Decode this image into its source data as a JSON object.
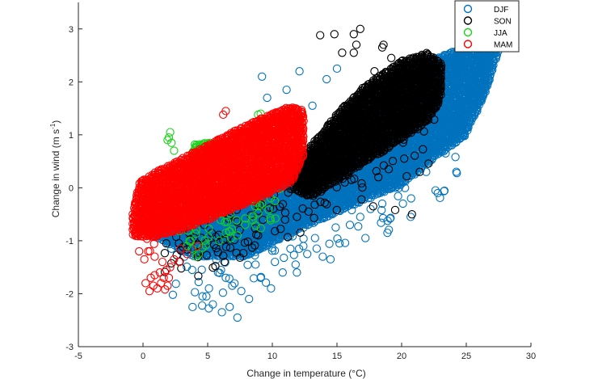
{
  "chart_data": {
    "type": "scatter",
    "title": "",
    "xlabel": "Change in temperature (°C)",
    "ylabel_main": "Change in wind (m s",
    "ylabel_sup": "-1",
    "ylabel_close": ")",
    "xlim": [
      -5,
      30
    ],
    "ylim": [
      -3,
      3.5
    ],
    "x_ticks": [
      -5,
      0,
      5,
      10,
      15,
      20,
      25,
      30
    ],
    "y_ticks": [
      -3,
      -2,
      -1,
      0,
      1,
      2,
      3
    ],
    "grid": false,
    "legend_position": "top-right",
    "marker": "open-circle",
    "series": [
      {
        "name": "DJF",
        "color": "#0072BD",
        "cloud_polygon": [
          [
            1,
            -0.95
          ],
          [
            4,
            -1.3
          ],
          [
            8,
            -1.3
          ],
          [
            12,
            -0.8
          ],
          [
            16,
            -0.35
          ],
          [
            20,
            0.05
          ],
          [
            22.5,
            0.55
          ],
          [
            25,
            1.0
          ],
          [
            26.5,
            1.8
          ],
          [
            27.5,
            2.6
          ],
          [
            26,
            2.75
          ],
          [
            22,
            2.4
          ],
          [
            18,
            1.6
          ],
          [
            14,
            0.7
          ],
          [
            10,
            0.1
          ],
          [
            6,
            -0.3
          ],
          [
            3,
            -0.6
          ],
          [
            0.5,
            -0.55
          ]
        ],
        "band": [
          [
            3,
            -1.7
          ],
          [
            6,
            -1.35
          ],
          [
            9,
            -1.0
          ],
          [
            12,
            -0.65
          ],
          [
            15,
            -0.3
          ],
          [
            18,
            0.0
          ],
          [
            21,
            0.3
          ],
          [
            24,
            0.8
          ],
          [
            26.5,
            2.0
          ]
        ],
        "band_spread": 0.85,
        "band_count": 110,
        "points": [
          [
            7.3,
            -2.45
          ],
          [
            6.1,
            -2.35
          ],
          [
            5.4,
            -2.2
          ],
          [
            4.6,
            -2.05
          ],
          [
            8.2,
            -2.1
          ],
          [
            9.9,
            -1.9
          ],
          [
            11.8,
            -1.45
          ],
          [
            13.9,
            -1.3
          ],
          [
            14.5,
            -1.35
          ],
          [
            15.2,
            -1.05
          ],
          [
            12.7,
            -1.25
          ],
          [
            10.8,
            -1.6
          ],
          [
            6.9,
            -1.85
          ],
          [
            3.8,
            -1.55
          ],
          [
            4.3,
            -1.78
          ],
          [
            9.1,
            -1.7
          ],
          [
            13.3,
            -0.95
          ],
          [
            16.8,
            -0.55
          ],
          [
            18.5,
            -0.3
          ],
          [
            20.7,
            -0.55
          ],
          [
            12.4,
            -1.1
          ],
          [
            8.7,
            -1.45
          ],
          [
            5.8,
            -1.6
          ],
          [
            7.6,
            -1.95
          ],
          [
            6.4,
            -1.7
          ],
          [
            10.2,
            -1.4
          ],
          [
            11.4,
            -1.15
          ],
          [
            14.9,
            -0.75
          ],
          [
            17.6,
            -0.4
          ],
          [
            19.8,
            0.0
          ],
          [
            21.9,
            0.3
          ],
          [
            23.4,
            0.65
          ],
          [
            24.6,
            0.95
          ],
          [
            22.8,
            -0.1
          ],
          [
            20.1,
            -0.3
          ],
          [
            9.6,
            1.7
          ],
          [
            9.2,
            2.1
          ],
          [
            11.1,
            1.85
          ],
          [
            12.1,
            2.2
          ],
          [
            9.9,
            1.25
          ],
          [
            13.1,
            1.55
          ],
          [
            14.2,
            2.05
          ],
          [
            15.0,
            2.25
          ],
          [
            3.2,
            -1.3
          ],
          [
            2.2,
            -1.15
          ],
          [
            5.1,
            -1.9
          ],
          [
            16.0,
            -0.7
          ],
          [
            18.9,
            -0.85
          ],
          [
            17.2,
            -0.95
          ],
          [
            11.9,
            -1.6
          ],
          [
            8.0,
            -1.25
          ],
          [
            6.7,
            -2.25
          ],
          [
            4.9,
            -2.05
          ],
          [
            13.6,
            -0.55
          ]
        ]
      },
      {
        "name": "SON",
        "color": "#000000",
        "cloud_polygon": [
          [
            11.5,
            0.0
          ],
          [
            13,
            -0.2
          ],
          [
            16,
            0.3
          ],
          [
            19,
            0.75
          ],
          [
            22,
            1.25
          ],
          [
            23,
            1.65
          ],
          [
            23.2,
            2.35
          ],
          [
            22,
            2.55
          ],
          [
            20,
            2.4
          ],
          [
            17,
            1.9
          ],
          [
            15,
            1.4
          ],
          [
            13.5,
            0.95
          ],
          [
            12,
            0.5
          ]
        ],
        "band": [
          [
            2,
            -1.25
          ],
          [
            5,
            -1.0
          ],
          [
            8,
            -0.7
          ],
          [
            11,
            -0.35
          ],
          [
            14,
            0.1
          ],
          [
            17,
            0.45
          ],
          [
            20,
            0.7
          ],
          [
            22,
            1.0
          ]
        ],
        "band_spread": 0.55,
        "band_count": 120,
        "points": [
          [
            13.7,
            2.88
          ],
          [
            14.8,
            2.9
          ],
          [
            16.5,
            2.7
          ],
          [
            16.3,
            2.55
          ],
          [
            18.5,
            2.65
          ],
          [
            18.6,
            2.7
          ],
          [
            16.3,
            2.9
          ],
          [
            16.8,
            3.0
          ],
          [
            15.4,
            2.55
          ],
          [
            19.2,
            2.45
          ],
          [
            17.9,
            2.2
          ],
          [
            20.8,
            -0.5
          ],
          [
            19.5,
            -0.42
          ],
          [
            16.9,
            -0.22
          ],
          [
            17.8,
            -0.35
          ],
          [
            8.9,
            -0.9
          ],
          [
            10.2,
            -0.82
          ],
          [
            5.8,
            -1.22
          ],
          [
            6.3,
            -1.4
          ],
          [
            7.5,
            -1.32
          ],
          [
            3.1,
            -1.12
          ],
          [
            2.6,
            -1.27
          ],
          [
            1.8,
            -1.05
          ],
          [
            14.2,
            -0.31
          ],
          [
            11.9,
            -0.55
          ],
          [
            12.8,
            -0.45
          ],
          [
            16.2,
            0.95
          ],
          [
            14.0,
            0.4
          ],
          [
            15.6,
            0.1
          ],
          [
            18.2,
            0.2
          ],
          [
            20.2,
            0.55
          ],
          [
            21.4,
            0.3
          ],
          [
            19.0,
            0.35
          ],
          [
            17.4,
            1.25
          ]
        ]
      },
      {
        "name": "JJA",
        "color": "#19D119",
        "cloud_polygon": [
          [
            3.5,
            0.4
          ],
          [
            4,
            0.85
          ],
          [
            5.5,
            0.85
          ],
          [
            6.5,
            0.8
          ],
          [
            7.3,
            0.7
          ],
          [
            7.2,
            0.4
          ],
          [
            5.5,
            0.35
          ],
          [
            4,
            0.3
          ]
        ],
        "band": [
          [
            2,
            -0.8
          ],
          [
            4,
            -0.75
          ],
          [
            6,
            -0.7
          ],
          [
            8,
            -0.55
          ],
          [
            10,
            -0.35
          ]
        ],
        "band_spread": 0.4,
        "band_count": 60,
        "points": [
          [
            2.1,
            1.05
          ],
          [
            2.0,
            0.95
          ],
          [
            2.2,
            0.85
          ],
          [
            1.9,
            0.9
          ],
          [
            2.4,
            0.7
          ],
          [
            8.9,
            1.38
          ],
          [
            9.1,
            1.4
          ],
          [
            4.1,
            -1.3
          ],
          [
            4.3,
            -1.25
          ],
          [
            3.8,
            -1.15
          ],
          [
            7.3,
            -0.9
          ],
          [
            6.8,
            -0.95
          ],
          [
            9.2,
            -0.3
          ],
          [
            10.2,
            -0.25
          ],
          [
            7.9,
            -0.7
          ],
          [
            5.9,
            -1.0
          ],
          [
            6.4,
            -0.85
          ]
        ]
      },
      {
        "name": "MAM",
        "color": "#FF0000",
        "cloud_polygon": [
          [
            -0.8,
            -0.5
          ],
          [
            -0.8,
            -0.9
          ],
          [
            0.5,
            -0.95
          ],
          [
            3,
            -0.8
          ],
          [
            6,
            -0.5
          ],
          [
            9,
            -0.2
          ],
          [
            11.5,
            0.1
          ],
          [
            12.5,
            0.65
          ],
          [
            12.5,
            1.45
          ],
          [
            11.5,
            1.55
          ],
          [
            9,
            1.3
          ],
          [
            6,
            0.95
          ],
          [
            3,
            0.55
          ],
          [
            1,
            0.3
          ],
          [
            -0.3,
            0.1
          ]
        ],
        "band": [
          [
            -0.5,
            -0.8
          ],
          [
            2,
            -0.5
          ],
          [
            5,
            -0.1
          ],
          [
            8,
            0.3
          ],
          [
            11,
            0.7
          ]
        ],
        "band_spread": 0.45,
        "band_count": 70,
        "points": [
          [
            0.2,
            -1.8
          ],
          [
            0.5,
            -1.95
          ],
          [
            0.8,
            -1.85
          ],
          [
            1.1,
            -1.9
          ],
          [
            1.4,
            -1.8
          ],
          [
            1.6,
            -1.7
          ],
          [
            1.7,
            -1.92
          ],
          [
            1.9,
            -1.85
          ],
          [
            2.0,
            -1.7
          ],
          [
            1.3,
            -1.6
          ],
          [
            0.9,
            -1.65
          ],
          [
            0.6,
            -1.7
          ],
          [
            2.1,
            -1.5
          ],
          [
            1.8,
            -1.55
          ],
          [
            2.4,
            -1.35
          ],
          [
            2.8,
            -1.4
          ],
          [
            0.1,
            -1.35
          ],
          [
            0.4,
            -1.2
          ],
          [
            6.2,
            1.38
          ],
          [
            6.4,
            1.45
          ],
          [
            -0.3,
            -1.2
          ],
          [
            0.9,
            -1.3
          ],
          [
            1.5,
            -1.4
          ],
          [
            3.4,
            -1.25
          ],
          [
            2.9,
            -1.15
          ],
          [
            4.2,
            -1.1
          ]
        ]
      }
    ]
  }
}
